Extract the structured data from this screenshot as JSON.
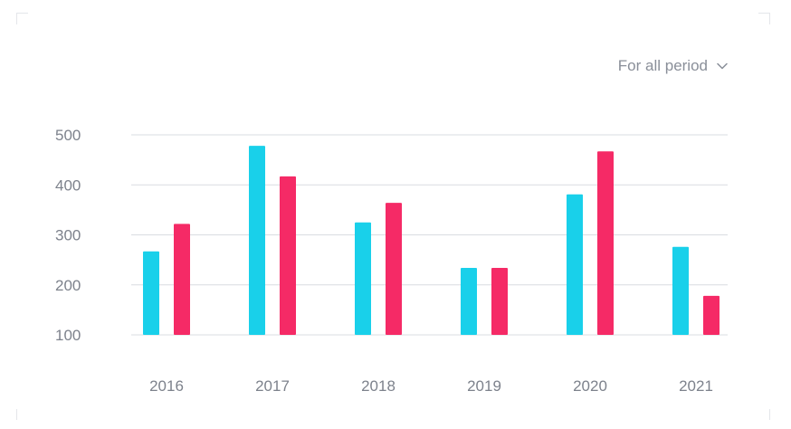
{
  "period_selector": {
    "label": "For all period",
    "icon": "chevron-down-icon"
  },
  "colors": {
    "series_a": "#19d0ea",
    "series_b": "#f52a66",
    "grid": "#d9dce1",
    "text": "#7d828c"
  },
  "chart_data": {
    "type": "bar",
    "categories": [
      "2016",
      "2017",
      "2018",
      "2019",
      "2020",
      "2021"
    ],
    "series": [
      {
        "values": [
          267,
          478,
          325,
          234,
          381,
          276
        ]
      },
      {
        "values": [
          322,
          417,
          364,
          234,
          467,
          178
        ]
      }
    ],
    "y_ticks": [
      100,
      200,
      300,
      400,
      500
    ],
    "ylim": [
      100,
      500
    ],
    "grid": true,
    "legend": "none"
  }
}
